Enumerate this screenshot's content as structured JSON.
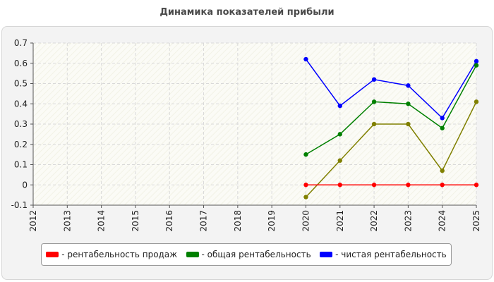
{
  "chart_data": {
    "type": "line",
    "title": "Динамика показателей прибыли",
    "xlabel": "",
    "ylabel": "",
    "categories": [
      "2012",
      "2013",
      "2014",
      "2015",
      "2016",
      "2017",
      "2018",
      "2019",
      "2020",
      "2021",
      "2022",
      "2023",
      "2024",
      "2025"
    ],
    "yticks": [
      "0.7",
      "0.6",
      "0.5",
      "0.4",
      "0.3",
      "0.2",
      "0.1",
      "0",
      "-0.1"
    ],
    "ylim": [
      -0.1,
      0.7
    ],
    "grid": true,
    "legend_position": "bottom",
    "series": [
      {
        "name": "- рентабельность продаж",
        "color": "#ff0000",
        "values": [
          null,
          null,
          null,
          null,
          null,
          null,
          null,
          null,
          0,
          0,
          0,
          0,
          0,
          0
        ]
      },
      {
        "name": "- общая рентабельность",
        "color": "#008000",
        "values": [
          null,
          null,
          null,
          null,
          null,
          null,
          null,
          null,
          0.15,
          0.25,
          0.41,
          0.4,
          0.28,
          0.59
        ]
      },
      {
        "name": "- чистая рентабельность",
        "color": "#0000ff",
        "values": [
          null,
          null,
          null,
          null,
          null,
          null,
          null,
          null,
          0.62,
          0.39,
          0.52,
          0.49,
          0.33,
          0.61
        ]
      },
      {
        "name": "",
        "color": "#808000",
        "values": [
          null,
          null,
          null,
          null,
          null,
          null,
          null,
          null,
          -0.06,
          0.12,
          0.3,
          0.3,
          0.07,
          0.41
        ]
      }
    ]
  }
}
